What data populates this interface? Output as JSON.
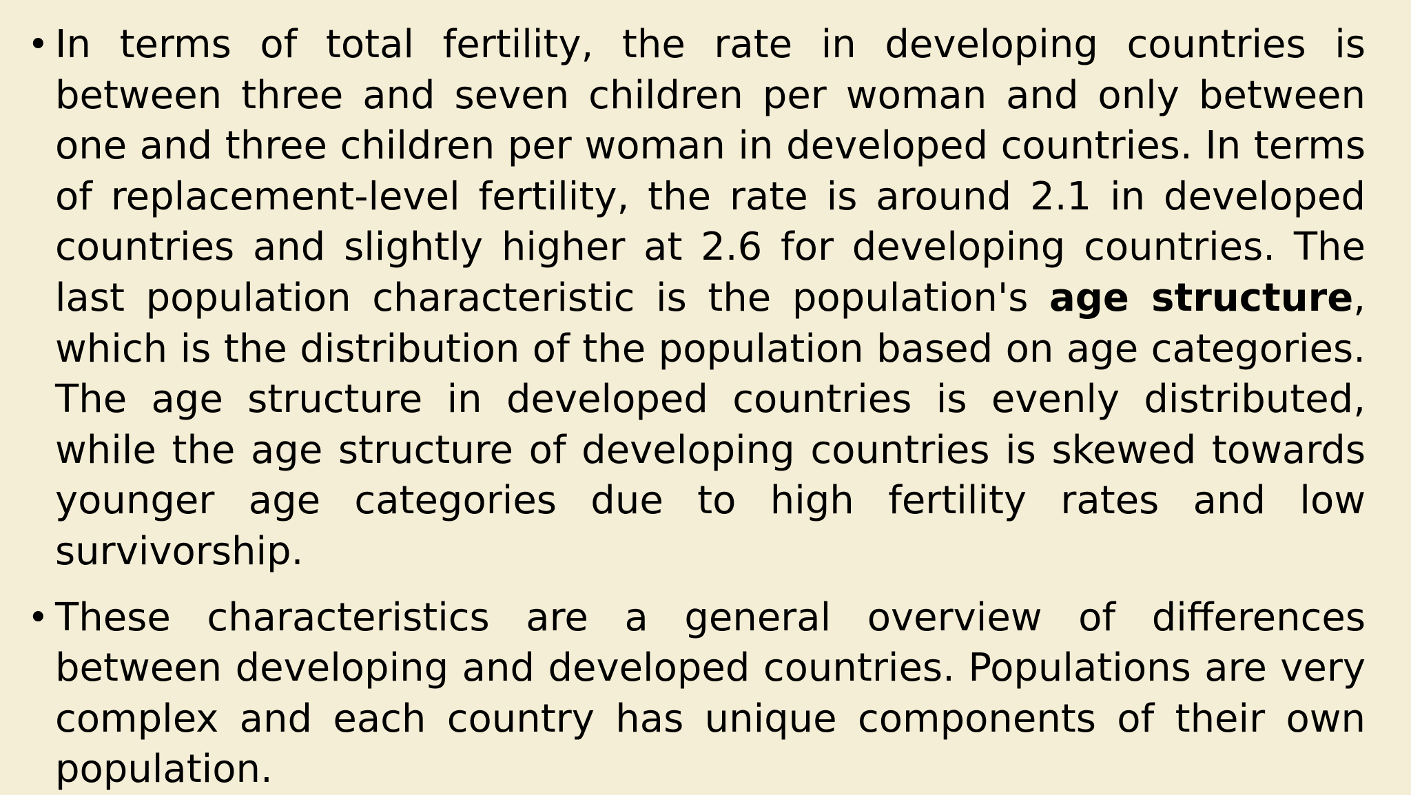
{
  "slide": {
    "bullets": [
      {
        "marker": "•",
        "text_before": "In terms of total fertility, the rate in developing countries is between three and seven children per woman and only between one and three children per woman in developed countries. In terms of replacement-level fertility, the rate is around 2.1 in developed countries and slightly higher at 2.6 for developing countries. The last population characteristic is the population's ",
        "bold_term": "age structure",
        "text_after": ", which is the distribution of the population based on age categories. The age structure in developed countries is evenly distributed, while the age structure of developing countries is skewed towards younger age categories due to high fertility rates and low survivorship."
      },
      {
        "marker": "•",
        "text": "These characteristics are a general overview of differences between developing and developed countries. Populations are very complex and each country has unique components of their own population."
      }
    ]
  }
}
